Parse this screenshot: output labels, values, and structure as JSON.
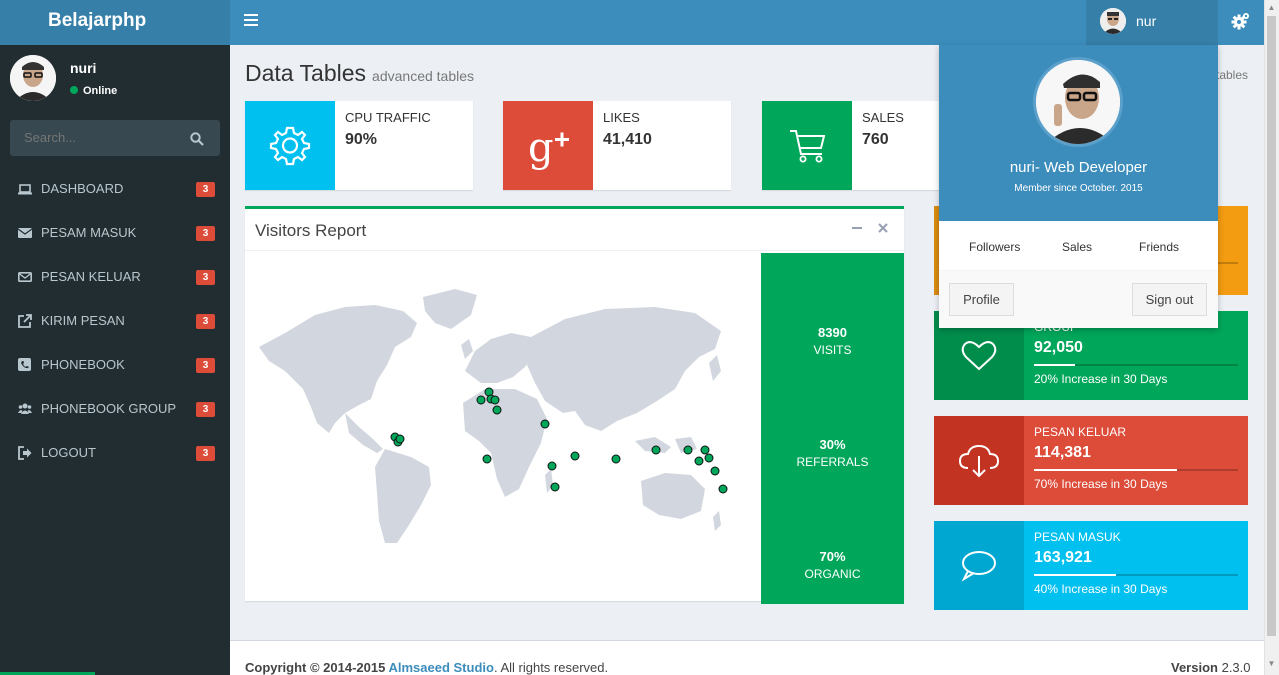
{
  "brand": "Belajarphp",
  "topbar": {
    "user_name": "nur",
    "icons": {
      "toggle": "hamburger-icon",
      "settings": "gears-icon"
    }
  },
  "sidebar": {
    "user_name": "nuri",
    "status": "Online",
    "search_placeholder": "Search...",
    "items": [
      {
        "label": "DASHBOARD",
        "icon": "laptop-icon",
        "badge": "3"
      },
      {
        "label": "PESAM MASUK",
        "icon": "envelope-icon",
        "badge": "3"
      },
      {
        "label": "PESAN KELUAR",
        "icon": "envelope-outline-icon",
        "badge": "3"
      },
      {
        "label": "KIRIM PESAN",
        "icon": "external-link-icon",
        "badge": "3"
      },
      {
        "label": "PHONEBOOK",
        "icon": "phone-square-icon",
        "badge": "3"
      },
      {
        "label": "PHONEBOOK GROUP",
        "icon": "users-icon",
        "badge": "3"
      },
      {
        "label": "LOGOUT",
        "icon": "sign-out-icon",
        "badge": "3"
      }
    ]
  },
  "page": {
    "title": "Data Tables",
    "subtitle": "advanced tables",
    "breadcrumb_tail": "tables"
  },
  "info_boxes": [
    {
      "label": "CPU TRAFFIC",
      "value": "90%",
      "icon": "gear-icon",
      "color": "#00c0ef"
    },
    {
      "label": "LIKES",
      "value": "41,410",
      "icon": "google-plus-icon",
      "color": "#dd4b39"
    },
    {
      "label": "SALES",
      "value": "760",
      "icon": "shopping-cart-icon",
      "color": "#00a65a"
    }
  ],
  "visitors": {
    "title": "Visitors Report",
    "stats": [
      {
        "value": "8390",
        "label": "VISITS"
      },
      {
        "value": "30%",
        "label": "REFERRALS"
      },
      {
        "value": "70%",
        "label": "ORGANIC"
      }
    ]
  },
  "stat_boxes": [
    {
      "label": "GROUP",
      "value": "92,050",
      "desc": "20% Increase in 30 Days",
      "progress": 20,
      "icon": "heart-icon",
      "color": "#00a65a",
      "icon_bg": "#008d4c"
    },
    {
      "label": "PESAN KELUAR",
      "value": "114,381",
      "desc": "70% Increase in 30 Days",
      "progress": 70,
      "icon": "cloud-download-icon",
      "color": "#dd4b39",
      "icon_bg": "#c23321"
    },
    {
      "label": "PESAN MASUK",
      "value": "163,921",
      "desc": "40% Increase in 30 Days",
      "progress": 40,
      "icon": "chat-bubble-icon",
      "color": "#00c0ef",
      "icon_bg": "#00a7d0"
    }
  ],
  "dropdown": {
    "name": "nuri- Web Developer",
    "since": "Member since October. 2015",
    "links": [
      "Followers",
      "Sales",
      "Friends"
    ],
    "profile_btn": "Profile",
    "signout_btn": "Sign out"
  },
  "footer": {
    "copyright_prefix": "Copyright © 2014-2015 ",
    "company": "Almsaeed Studio",
    "suffix": ". All rights reserved.",
    "version_label": "Version",
    "version": "2.3.0"
  }
}
